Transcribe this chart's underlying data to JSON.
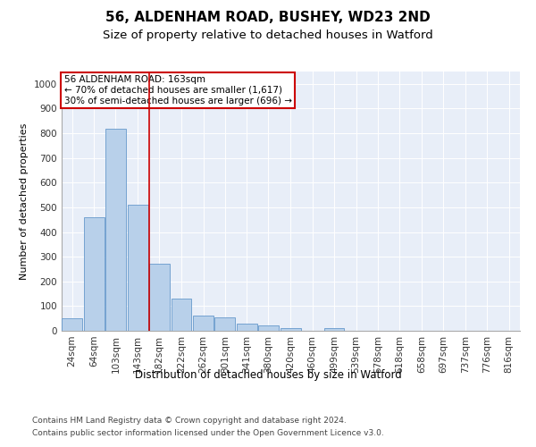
{
  "title1": "56, ALDENHAM ROAD, BUSHEY, WD23 2ND",
  "title2": "Size of property relative to detached houses in Watford",
  "xlabel": "Distribution of detached houses by size in Watford",
  "ylabel": "Number of detached properties",
  "footer1": "Contains HM Land Registry data © Crown copyright and database right 2024.",
  "footer2": "Contains public sector information licensed under the Open Government Licence v3.0.",
  "annotation_line1": "56 ALDENHAM ROAD: 163sqm",
  "annotation_line2": "← 70% of detached houses are smaller (1,617)",
  "annotation_line3": "30% of semi-detached houses are larger (696) →",
  "bar_categories": [
    "24sqm",
    "64sqm",
    "103sqm",
    "143sqm",
    "182sqm",
    "222sqm",
    "262sqm",
    "301sqm",
    "341sqm",
    "380sqm",
    "420sqm",
    "460sqm",
    "499sqm",
    "539sqm",
    "578sqm",
    "618sqm",
    "658sqm",
    "697sqm",
    "737sqm",
    "776sqm",
    "816sqm"
  ],
  "bar_values": [
    50,
    460,
    820,
    510,
    270,
    130,
    60,
    55,
    30,
    20,
    10,
    0,
    10,
    0,
    0,
    0,
    0,
    0,
    0,
    0,
    0
  ],
  "bar_color": "#b8d0ea",
  "bar_edge_color": "#6699cc",
  "vline_color": "#cc0000",
  "ylim": [
    0,
    1050
  ],
  "yticks": [
    0,
    100,
    200,
    300,
    400,
    500,
    600,
    700,
    800,
    900,
    1000
  ],
  "bg_color": "#e8eef8",
  "title1_fontsize": 11,
  "title2_fontsize": 9.5,
  "ylabel_fontsize": 8,
  "tick_fontsize": 7.5,
  "annot_fontsize": 7.5,
  "footer_fontsize": 6.5
}
